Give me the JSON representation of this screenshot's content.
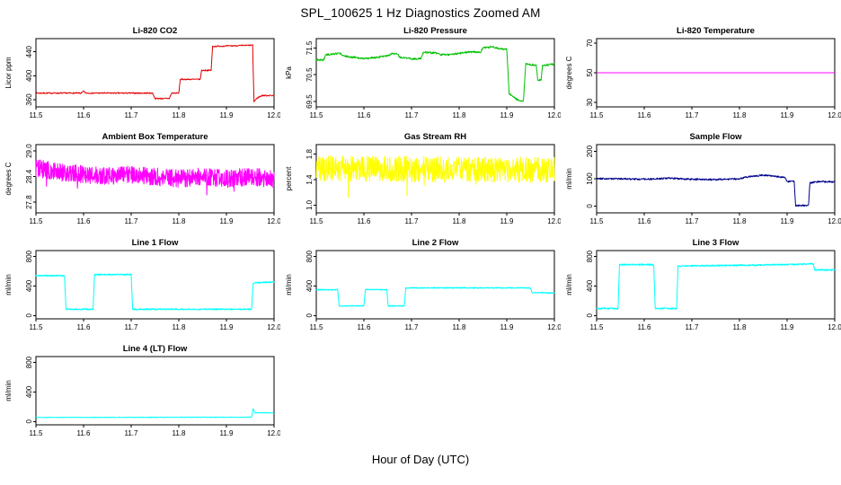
{
  "figure": {
    "title": "SPL_100625 1 Hz Diagnostics Zoomed AM",
    "xlabel": "Hour of Day (UTC)"
  },
  "chart_data": [
    {
      "type": "line",
      "title": "Li-820 CO2",
      "ylabel": "Licor ppm",
      "color": "#E00000",
      "xlim": [
        11.5,
        12.0
      ],
      "ylim": [
        348,
        462
      ],
      "xticks": [
        11.5,
        11.6,
        11.7,
        11.8,
        11.9,
        12.0
      ],
      "xtick_labels": [
        "11.5",
        "11.6",
        "11.7",
        "11.8",
        "11.9",
        "12.0"
      ],
      "yticks": [
        360,
        400,
        440
      ],
      "ytick_labels": [
        "360",
        "400",
        "440"
      ],
      "x": [
        11.5,
        11.595,
        11.6,
        11.605,
        11.61,
        11.745,
        11.75,
        11.78,
        11.785,
        11.8,
        11.803,
        11.845,
        11.848,
        11.868,
        11.871,
        11.955,
        11.958,
        11.965,
        11.975,
        12.0
      ],
      "y": [
        371,
        371,
        374,
        371,
        371,
        371,
        362,
        362,
        371,
        371,
        394,
        394,
        409,
        409,
        449,
        451,
        357,
        363,
        367,
        367
      ],
      "noise": 1.0,
      "points": 600,
      "spike_prob": 0,
      "spike_mag": 0
    },
    {
      "type": "line",
      "title": "Li-820 Pressure",
      "ylabel": "kPa",
      "color": "#00C000",
      "xlim": [
        11.5,
        12.0
      ],
      "ylim": [
        69.3,
        71.85
      ],
      "xticks": [
        11.5,
        11.6,
        11.7,
        11.8,
        11.9,
        12.0
      ],
      "xtick_labels": [
        "11.5",
        "11.6",
        "11.7",
        "11.8",
        "11.9",
        "12.0"
      ],
      "yticks": [
        69.5,
        70.5,
        71.5
      ],
      "ytick_labels": [
        "69.5",
        "70.5",
        "71.5"
      ],
      "x": [
        11.5,
        11.515,
        11.52,
        11.55,
        11.56,
        11.58,
        11.6,
        11.625,
        11.65,
        11.66,
        11.67,
        11.675,
        11.7,
        11.72,
        11.725,
        11.755,
        11.76,
        11.78,
        11.8,
        11.82,
        11.845,
        11.85,
        11.87,
        11.88,
        11.895,
        11.9,
        11.905,
        11.92,
        11.93,
        11.935,
        11.94,
        11.945,
        11.962,
        11.965,
        11.972,
        11.975,
        12.0
      ],
      "y": [
        71.05,
        71.05,
        71.25,
        71.3,
        71.2,
        71.15,
        71.1,
        71.15,
        71.2,
        71.3,
        71.3,
        71.15,
        71.1,
        71.1,
        71.35,
        71.3,
        71.25,
        71.25,
        71.3,
        71.35,
        71.35,
        71.5,
        71.55,
        71.5,
        71.45,
        71.45,
        69.8,
        69.6,
        69.5,
        69.55,
        70.9,
        70.9,
        70.85,
        70.3,
        70.3,
        70.85,
        70.9
      ],
      "noise": 0.035,
      "points": 600,
      "spike_prob": 0,
      "spike_mag": 0
    },
    {
      "type": "line",
      "title": "Li-820 Temperature",
      "ylabel": "degrees C",
      "color": "#FF00FF",
      "xlim": [
        11.5,
        12.0
      ],
      "ylim": [
        27,
        73
      ],
      "xticks": [
        11.5,
        11.6,
        11.7,
        11.8,
        11.9,
        12.0
      ],
      "xtick_labels": [
        "11.5",
        "11.6",
        "11.7",
        "11.8",
        "11.9",
        "12.0"
      ],
      "yticks": [
        30,
        50,
        70
      ],
      "ytick_labels": [
        "30",
        "50",
        "70"
      ],
      "x": [
        11.5,
        12.0
      ],
      "y": [
        50,
        50
      ],
      "noise": 0,
      "points": 4,
      "spike_prob": 0,
      "spike_mag": 0
    },
    {
      "type": "line",
      "title": "Ambient Box Temperature",
      "ylabel": "degrees C",
      "color": "#FF00FF",
      "xlim": [
        11.5,
        12.0
      ],
      "ylim": [
        27.55,
        29.15
      ],
      "xticks": [
        11.5,
        11.6,
        11.7,
        11.8,
        11.9,
        12.0
      ],
      "xtick_labels": [
        "11.5",
        "11.6",
        "11.7",
        "11.8",
        "11.9",
        "12.0"
      ],
      "yticks": [
        27.8,
        28.4,
        29.0
      ],
      "ytick_labels": [
        "27.8",
        "28.4",
        "29.0"
      ],
      "x": [
        11.5,
        11.55,
        11.6,
        11.65,
        11.7,
        11.75,
        11.8,
        11.85,
        11.9,
        11.95,
        12.0
      ],
      "y": [
        28.6,
        28.5,
        28.45,
        28.42,
        28.45,
        28.4,
        28.35,
        28.4,
        28.35,
        28.4,
        28.35
      ],
      "noise": 0.21,
      "points": 900,
      "spike_prob": 0.004,
      "spike_mag": 0.5
    },
    {
      "type": "line",
      "title": "Gas Stream RH",
      "ylabel": "percent",
      "color": "#FFFF00",
      "xlim": [
        11.5,
        12.0
      ],
      "ylim": [
        0.88,
        1.95
      ],
      "xticks": [
        11.5,
        11.6,
        11.7,
        11.8,
        11.9,
        12.0
      ],
      "xtick_labels": [
        "11.5",
        "11.6",
        "11.7",
        "11.8",
        "11.9",
        "12.0"
      ],
      "yticks": [
        1.0,
        1.4,
        1.8
      ],
      "ytick_labels": [
        "1.0",
        "1.4",
        "1.8"
      ],
      "x": [
        11.5,
        12.0
      ],
      "y": [
        1.58,
        1.55
      ],
      "noise": 0.2,
      "points": 900,
      "spike_prob": 0.012,
      "spike_mag": 0.4
    },
    {
      "type": "line",
      "title": "Sample Flow",
      "ylabel": "ml/min",
      "color": "#00008B",
      "xlim": [
        11.5,
        12.0
      ],
      "ylim": [
        -25,
        225
      ],
      "xticks": [
        11.5,
        11.6,
        11.7,
        11.8,
        11.9,
        12.0
      ],
      "xtick_labels": [
        "11.5",
        "11.6",
        "11.7",
        "11.8",
        "11.9",
        "12.0"
      ],
      "yticks": [
        0,
        100,
        200
      ],
      "ytick_labels": [
        "0",
        "100",
        "200"
      ],
      "x": [
        11.5,
        11.55,
        11.6,
        11.65,
        11.7,
        11.75,
        11.8,
        11.82,
        11.85,
        11.87,
        11.895,
        11.9,
        11.915,
        11.918,
        11.945,
        11.948,
        11.97,
        12.0
      ],
      "y": [
        100,
        100,
        98,
        102,
        98,
        97,
        100,
        108,
        113,
        110,
        105,
        90,
        90,
        2,
        2,
        85,
        90,
        88
      ],
      "noise": 3,
      "points": 700,
      "spike_prob": 0,
      "spike_mag": 0
    },
    {
      "type": "line",
      "title": "Line 1 Flow",
      "ylabel": "ml/min",
      "color": "#00FFFF",
      "xlim": [
        11.5,
        12.0
      ],
      "ylim": [
        -45,
        880
      ],
      "xticks": [
        11.5,
        11.6,
        11.7,
        11.8,
        11.9,
        12.0
      ],
      "xtick_labels": [
        "11.5",
        "11.6",
        "11.7",
        "11.8",
        "11.9",
        "12.0"
      ],
      "yticks": [
        0,
        400,
        800
      ],
      "ytick_labels": [
        "0",
        "400",
        "800"
      ],
      "x": [
        11.5,
        11.56,
        11.563,
        11.62,
        11.623,
        11.7,
        11.703,
        11.953,
        11.956,
        11.98,
        12.0
      ],
      "y": [
        540,
        540,
        85,
        85,
        555,
        555,
        85,
        85,
        440,
        450,
        455
      ],
      "noise": 9,
      "points": 800,
      "spike_prob": 0,
      "spike_mag": 0
    },
    {
      "type": "line",
      "title": "Line 2 Flow",
      "ylabel": "ml/min",
      "color": "#00FFFF",
      "xlim": [
        11.5,
        12.0
      ],
      "ylim": [
        -45,
        880
      ],
      "xticks": [
        11.5,
        11.6,
        11.7,
        11.8,
        11.9,
        12.0
      ],
      "xtick_labels": [
        "11.5",
        "11.6",
        "11.7",
        "11.8",
        "11.9",
        "12.0"
      ],
      "yticks": [
        0,
        400,
        800
      ],
      "ytick_labels": [
        "0",
        "400",
        "800"
      ],
      "x": [
        11.5,
        11.545,
        11.548,
        11.6,
        11.603,
        11.648,
        11.651,
        11.685,
        11.688,
        11.95,
        11.953,
        12.0
      ],
      "y": [
        350,
        350,
        130,
        130,
        350,
        350,
        130,
        130,
        375,
        375,
        310,
        305
      ],
      "noise": 7,
      "points": 800,
      "spike_prob": 0,
      "spike_mag": 0
    },
    {
      "type": "line",
      "title": "Line 3 Flow",
      "ylabel": "ml/min",
      "color": "#00FFFF",
      "xlim": [
        11.5,
        12.0
      ],
      "ylim": [
        -45,
        880
      ],
      "xticks": [
        11.5,
        11.6,
        11.7,
        11.8,
        11.9,
        12.0
      ],
      "xtick_labels": [
        "11.5",
        "11.6",
        "11.7",
        "11.8",
        "11.9",
        "12.0"
      ],
      "yticks": [
        0,
        400,
        800
      ],
      "ytick_labels": [
        "0",
        "400",
        "800"
      ],
      "x": [
        11.5,
        11.545,
        11.548,
        11.62,
        11.623,
        11.668,
        11.671,
        11.9,
        11.955,
        11.958,
        12.0
      ],
      "y": [
        95,
        95,
        690,
        690,
        95,
        95,
        670,
        690,
        700,
        620,
        615
      ],
      "noise": 10,
      "points": 800,
      "spike_prob": 0,
      "spike_mag": 0
    },
    {
      "type": "line",
      "title": "Line 4 (LT) Flow",
      "ylabel": "ml/min",
      "color": "#00FFFF",
      "xlim": [
        11.5,
        12.0
      ],
      "ylim": [
        -45,
        880
      ],
      "xticks": [
        11.5,
        11.6,
        11.7,
        11.8,
        11.9,
        12.0
      ],
      "xtick_labels": [
        "11.5",
        "11.6",
        "11.7",
        "11.8",
        "11.9",
        "12.0"
      ],
      "yticks": [
        0,
        400,
        800
      ],
      "ytick_labels": [
        "0",
        "400",
        "800"
      ],
      "x": [
        11.5,
        11.95,
        11.953,
        11.956,
        11.96,
        12.0
      ],
      "y": [
        55,
        58,
        60,
        175,
        120,
        115
      ],
      "noise": 4,
      "points": 700,
      "spike_prob": 0,
      "spike_mag": 0
    }
  ]
}
